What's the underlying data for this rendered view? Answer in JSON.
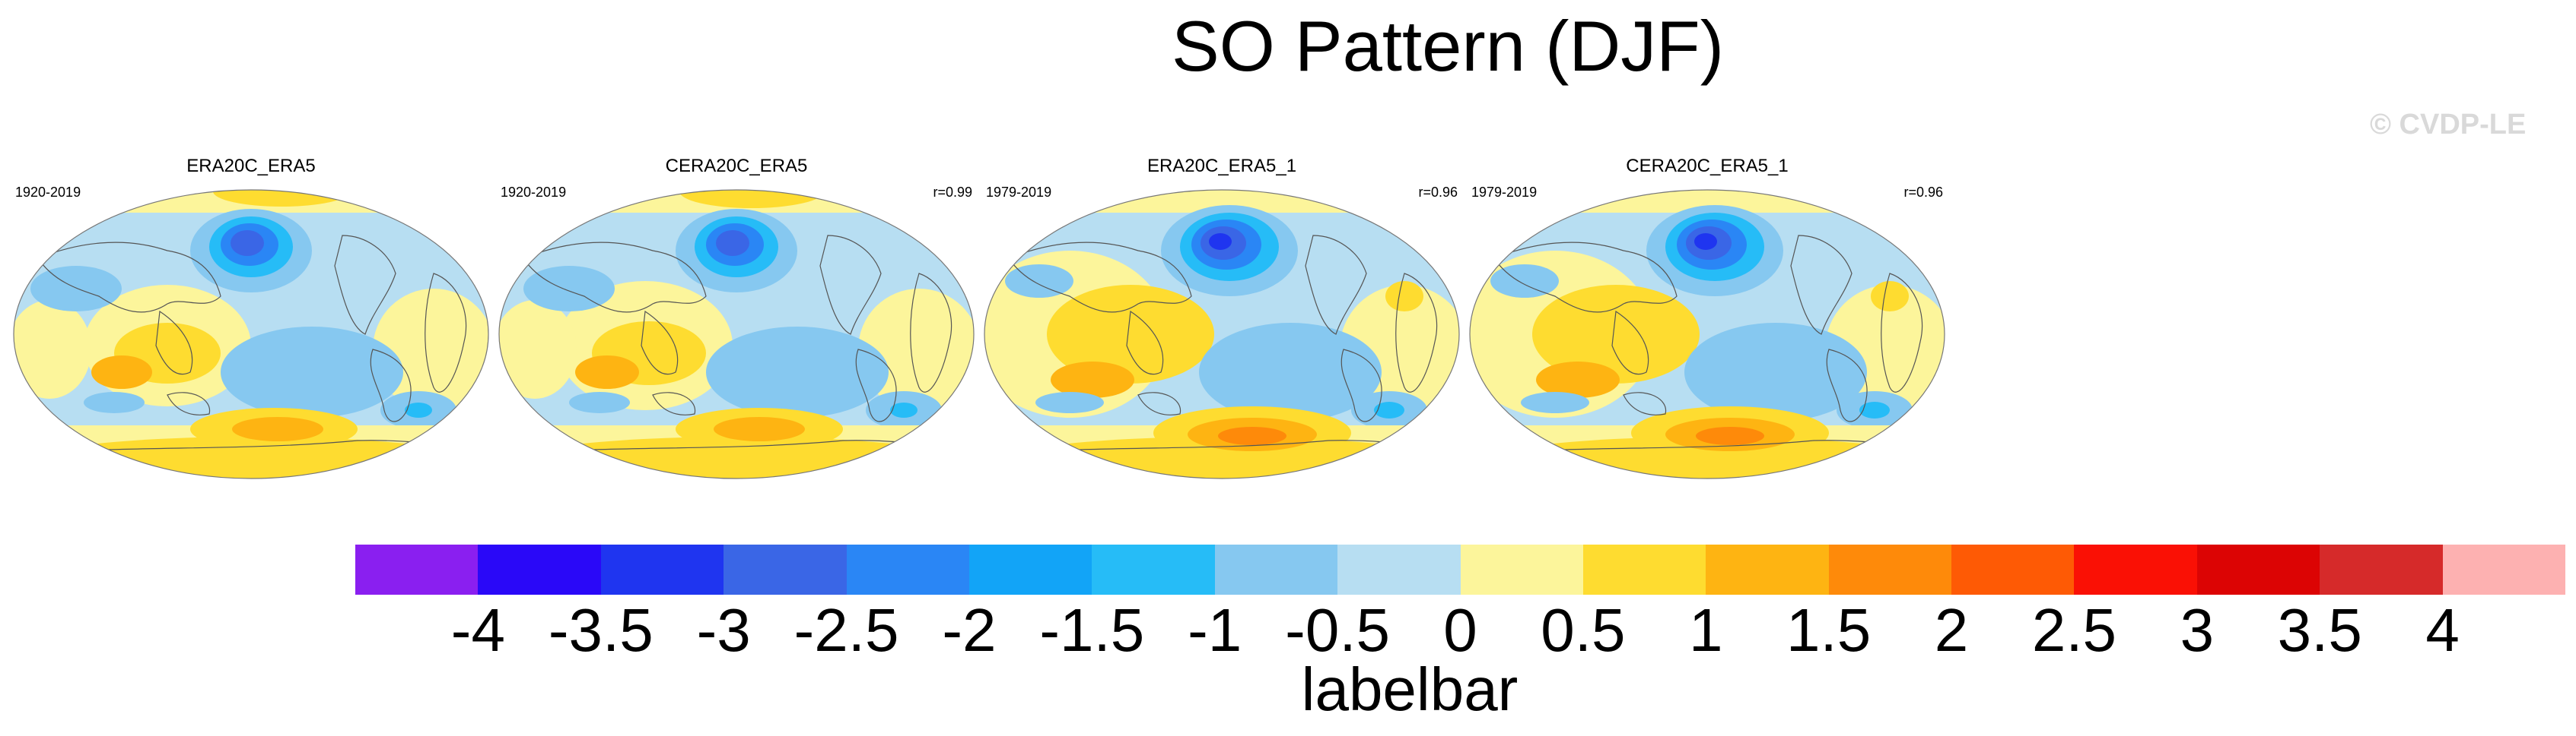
{
  "title": "SO Pattern (DJF)",
  "watermark": "© CVDP-LE",
  "panels": [
    {
      "title": "ERA20C_ERA5",
      "period": "1920-2019",
      "correlation": ""
    },
    {
      "title": "CERA20C_ERA5",
      "period": "1920-2019",
      "correlation": "r=0.99"
    },
    {
      "title": "ERA20C_ERA5_1",
      "period": "1979-2019",
      "correlation": "r=0.96"
    },
    {
      "title": "CERA20C_ERA5_1",
      "period": "1979-2019",
      "correlation": "r=0.96"
    }
  ],
  "colorbar": {
    "label": "labelbar",
    "ticks": [
      "-4",
      "-3.5",
      "-3",
      "-2.5",
      "-2",
      "-1.5",
      "-1",
      "-0.5",
      "0",
      "0.5",
      "1",
      "1.5",
      "2",
      "2.5",
      "3",
      "3.5",
      "4"
    ],
    "colors": [
      "#8a1ff0",
      "#2a08f8",
      "#1f35f0",
      "#3a66e6",
      "#2a86f5",
      "#12a4f7",
      "#26bcf7",
      "#86c8f0",
      "#b7def2",
      "#fcf59b",
      "#fedc30",
      "#feb412",
      "#fe8a0a",
      "#fe5a05",
      "#fa1005",
      "#dc0404",
      "#d62a2a",
      "#fdb1b1"
    ]
  },
  "colors": {
    "ocean_blue": "#86c8f0",
    "light_blue": "#b7def2",
    "light_yellow": "#fcf59b",
    "yellow": "#fedc30",
    "orange": "#feb412",
    "deep_orange": "#fe8a0a",
    "dark_blue": "#1f35f0"
  }
}
